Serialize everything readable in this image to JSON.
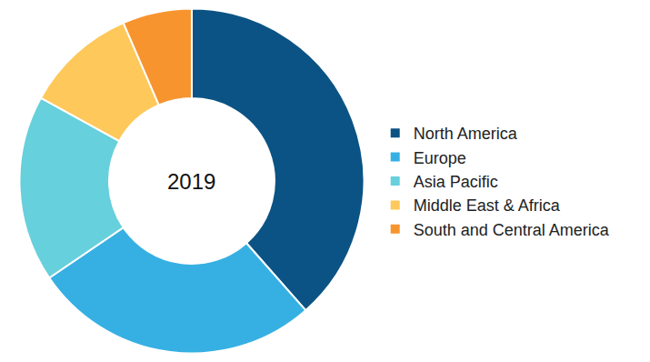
{
  "chart_data": {
    "type": "pie",
    "title": "2019",
    "categories": [
      "North America",
      "Europe",
      "Asia Pacific",
      "Middle East & Africa",
      "South and Central America"
    ],
    "values": [
      38.5,
      27,
      17.5,
      10.5,
      6.5
    ],
    "colors": [
      "#0b5384",
      "#36b0e3",
      "#66d0dc",
      "#fec85a",
      "#f7942e"
    ],
    "data_labels": false,
    "legend": "right"
  }
}
